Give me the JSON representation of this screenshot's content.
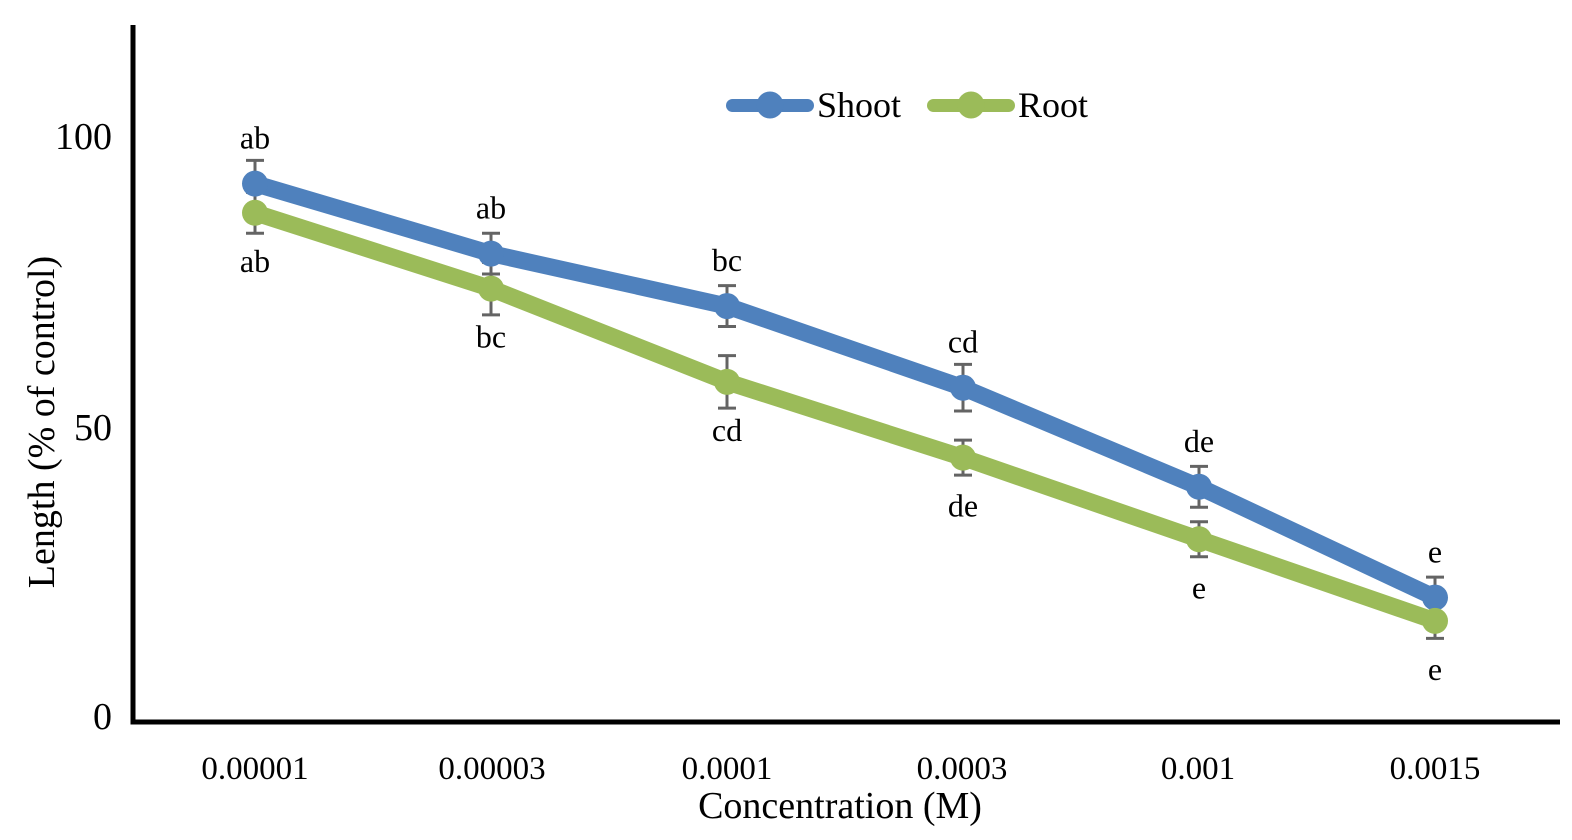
{
  "chart_data": {
    "type": "line",
    "xlabel": "Concentration (M)",
    "ylabel": "Length (% of control)",
    "x_axis_type": "categorical",
    "categories": [
      "0.00001",
      "0.00003",
      "0.0001",
      "0.0003",
      "0.001",
      "0.0015"
    ],
    "ytick_labels": [
      "100",
      "50",
      "0"
    ],
    "yticks": [
      100,
      50,
      0
    ],
    "ylim": [
      0,
      120
    ],
    "grid": false,
    "legend_position": "top-center",
    "axis_color": "#000000",
    "error_bar_color": "#646464",
    "series": [
      {
        "name": "Shoot",
        "color": "#4F81BD",
        "values": [
          92,
          80,
          71,
          57,
          40,
          21
        ],
        "errors": [
          4,
          3.5,
          3.5,
          4,
          3.5,
          3.5
        ],
        "point_labels": [
          "ab",
          "ab",
          "bc",
          "cd",
          "de",
          "e"
        ],
        "label_position": "above"
      },
      {
        "name": "Root",
        "color": "#9BBB59",
        "values": [
          87,
          74,
          58,
          45,
          31,
          17
        ],
        "errors": [
          3.5,
          4.5,
          4.5,
          3,
          3,
          3
        ],
        "point_labels": [
          "ab",
          "bc",
          "cd",
          "de",
          "e",
          "e"
        ],
        "label_position": "below"
      }
    ]
  }
}
